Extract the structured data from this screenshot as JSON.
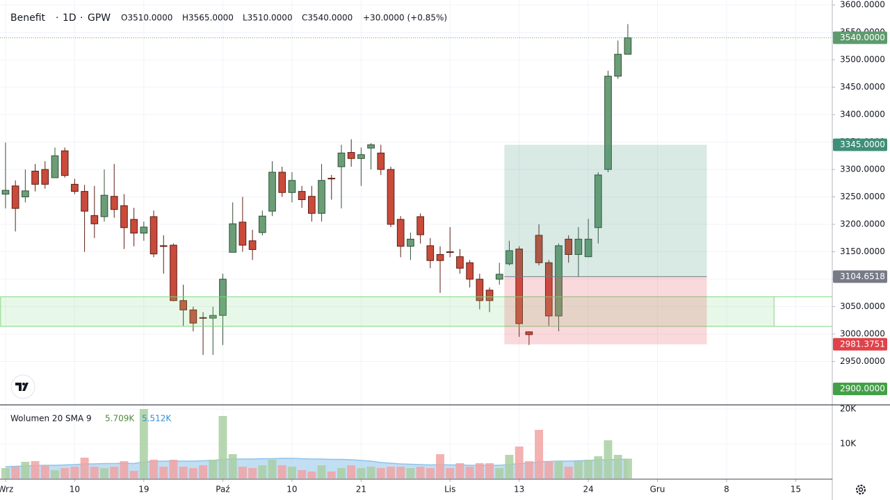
{
  "chart_data": {
    "type": "candlestick",
    "symbol": "Benefit",
    "interval": "1D",
    "exchange": "GPW",
    "ohlc_legend": [
      "O3510.0000",
      "H3565.0000",
      "L3510.0000",
      "C3540.0000",
      "+30.0000 (+0.85%)"
    ],
    "up_color": "#6b9e77",
    "down_color": "#c94b3b",
    "up_border": "#2f4f36",
    "down_border": "#5c1c12",
    "open": [
      3255,
      3270,
      3250,
      3297,
      3300,
      3285,
      3334,
      3273,
      3260,
      3216,
      3214,
      3251,
      3234,
      3209,
      3184,
      3214,
      3161,
      3162,
      3061,
      3044,
      3030,
      3029,
      3034,
      3149,
      3204,
      3170,
      3185,
      3224,
      3295,
      3258,
      3260,
      3251,
      3220,
      3284,
      3305,
      3331,
      3320,
      3339,
      3330,
      3300,
      3209,
      3160,
      3214,
      3161,
      3145,
      3150,
      3141,
      3130,
      3100,
      3080,
      3100,
      3128,
      3155,
      3004,
      3180,
      3130,
      3033,
      3173,
      3145,
      3141,
      3194,
      3300,
      3470,
      3510
    ],
    "high": [
      3349,
      3280,
      3300,
      3310,
      3315,
      3340,
      3340,
      3283,
      3272,
      3270,
      3300,
      3310,
      3255,
      3230,
      3205,
      3225,
      3180,
      3165,
      3090,
      3050,
      3040,
      3050,
      3110,
      3240,
      3250,
      3190,
      3225,
      3315,
      3305,
      3295,
      3270,
      3270,
      3310,
      3290,
      3345,
      3355,
      3340,
      3348,
      3345,
      3305,
      3215,
      3185,
      3220,
      3175,
      3160,
      3195,
      3155,
      3135,
      3110,
      3085,
      3130,
      3170,
      3160,
      3005,
      3200,
      3135,
      3165,
      3180,
      3195,
      3210,
      3295,
      3480,
      3535,
      3565
    ],
    "low": [
      3229,
      3187,
      3240,
      3260,
      3265,
      3285,
      3285,
      3255,
      3150,
      3175,
      3205,
      3212,
      3155,
      3160,
      3170,
      3140,
      3110,
      3060,
      3015,
      3005,
      2962,
      2962,
      2980,
      3149,
      3150,
      3135,
      3180,
      3215,
      3250,
      3240,
      3230,
      3205,
      3205,
      3245,
      3229,
      3305,
      3270,
      3300,
      3290,
      3195,
      3140,
      3135,
      3165,
      3120,
      3075,
      3140,
      3110,
      3085,
      3045,
      3040,
      3090,
      3125,
      2995,
      2980,
      3125,
      3015,
      3005,
      3130,
      3105,
      3140,
      3165,
      3295,
      3465,
      3510
    ],
    "close": [
      3262,
      3229,
      3261,
      3273,
      3273,
      3325,
      3289,
      3260,
      3224,
      3201,
      3253,
      3227,
      3194,
      3184,
      3195,
      3146,
      3160,
      3061,
      3044,
      3020,
      3029,
      3034,
      3100,
      3201,
      3162,
      3154,
      3215,
      3295,
      3258,
      3280,
      3245,
      3220,
      3280,
      3283,
      3330,
      3320,
      3327,
      3345,
      3300,
      3200,
      3160,
      3173,
      3181,
      3134,
      3134,
      3149,
      3120,
      3100,
      3061,
      3061,
      3109,
      3152,
      3019,
      2999,
      3130,
      3033,
      3161,
      3145,
      3173,
      3173,
      3290,
      3470,
      3510,
      3540
    ],
    "xlim": [
      -0.56,
      83.7
    ],
    "xticks": [
      {
        "value": 0,
        "label": "Wrz"
      },
      {
        "value": 7,
        "label": "10"
      },
      {
        "value": 14,
        "label": "19"
      },
      {
        "value": 22,
        "label": "Paź"
      },
      {
        "value": 29,
        "label": "10"
      },
      {
        "value": 36,
        "label": "21"
      },
      {
        "value": 45,
        "label": "Lis"
      },
      {
        "value": 52,
        "label": "13"
      },
      {
        "value": 59,
        "label": "24"
      },
      {
        "value": 66,
        "label": "Gru"
      },
      {
        "value": 73,
        "label": "8"
      },
      {
        "value": 80,
        "label": "15"
      }
    ],
    "ylim": [
      2872.2,
      3608.9
    ],
    "yticks": [
      {
        "value": 2950,
        "label": "2950.0000"
      },
      {
        "value": 3000,
        "label": "3000.0000"
      },
      {
        "value": 3050,
        "label": "3050.0000"
      },
      {
        "value": 3100,
        "label": "3100.0000"
      },
      {
        "value": 3150,
        "label": "3150.0000"
      },
      {
        "value": 3200,
        "label": "3200.0000"
      },
      {
        "value": 3250,
        "label": "3250.0000"
      },
      {
        "value": 3300,
        "label": "3300.0000"
      },
      {
        "value": 3350,
        "label": "3350.0000"
      },
      {
        "value": 3400,
        "label": "3400.0000"
      },
      {
        "value": 3450,
        "label": "3450.0000"
      },
      {
        "value": 3500,
        "label": "3500.0000"
      },
      {
        "value": 3550,
        "label": "3550.0000"
      },
      {
        "value": 3600,
        "label": "3600.0000"
      }
    ],
    "grid": true,
    "last_price": {
      "value": 3540,
      "label": "3540.0000",
      "color": "#5d9b6c"
    },
    "price_marker": {
      "value": 2900,
      "label": "2900.0000",
      "color": "#43a047"
    },
    "zone": {
      "top": 3068,
      "bottom": 3014,
      "start": -0.5,
      "end": 77.8,
      "color": "#7ed67e"
    },
    "position": {
      "start": 51,
      "end": 71,
      "entry": {
        "value": 3104.6518,
        "label": "3104.6518",
        "color": "#787b86"
      },
      "target": {
        "value": 3345,
        "label": "3345.0000",
        "color": "#3f8f78"
      },
      "stop": {
        "value": 2981.3751,
        "label": "2981.3751",
        "color": "#e0424a"
      }
    },
    "volume": {
      "title": "Wolumen 20 SMA 9",
      "last_label": "5.709K",
      "sma_label": "5.512K",
      "up_color": "#a9cfa2",
      "down_color": "#f2a3a3",
      "sma_color": "#8fc3ea",
      "values": [
        3,
        3.4,
        4.8,
        5,
        3.6,
        2.4,
        3,
        3.4,
        6,
        3.4,
        3,
        3.4,
        5,
        2.2,
        20,
        5.4,
        3.4,
        5.4,
        3.4,
        3,
        3.8,
        5.4,
        18,
        7,
        3.4,
        3,
        3.8,
        5.4,
        3.8,
        3.4,
        2.4,
        2,
        3.8,
        2,
        3,
        3.8,
        3,
        3.4,
        3,
        3.4,
        3.4,
        3,
        3.4,
        3,
        7,
        3,
        4.4,
        3.4,
        4.4,
        4.4,
        3,
        6.8,
        9.2,
        5,
        14,
        5,
        5,
        3.4,
        5,
        5.4,
        6.4,
        11,
        6.8,
        5.709
      ],
      "sma": [
        3.4,
        3.5,
        3.6,
        3.7,
        3.8,
        3.8,
        3.9,
        4.0,
        4.2,
        4.2,
        4.3,
        4.3,
        4.4,
        4.3,
        4.8,
        4.9,
        5.0,
        5.0,
        5.0,
        5.0,
        5.1,
        5.2,
        5.5,
        5.6,
        5.6,
        5.6,
        5.7,
        5.7,
        5.8,
        5.8,
        5.7,
        5.6,
        5.6,
        5.5,
        5.5,
        5.4,
        5.2,
        5.0,
        4.6,
        4.4,
        4.2,
        4.1,
        4.0,
        3.9,
        4.0,
        3.9,
        3.9,
        3.8,
        3.8,
        3.8,
        3.8,
        4.0,
        4.3,
        4.4,
        4.8,
        4.9,
        5.0,
        5.0,
        5.1,
        5.2,
        5.3,
        5.4,
        5.5,
        5.512
      ],
      "ylim": [
        -0.2,
        21.2
      ],
      "yticks": [
        {
          "value": 10,
          "label": "10K"
        },
        {
          "value": 20,
          "label": "20K"
        }
      ]
    }
  }
}
